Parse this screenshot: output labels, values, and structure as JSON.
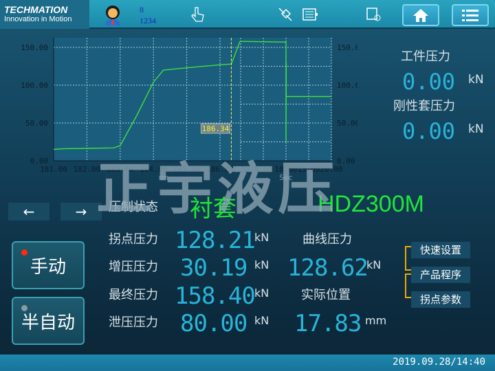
{
  "header": {
    "logo_brand": "TECHMATION",
    "logo_tagline": "Innovation in Motion",
    "user_level": "8",
    "user_id": "1234",
    "icons": [
      "user-avatar-icon",
      "touch-hand-icon",
      "disconnect-icon",
      "battery-icon",
      "print-icon",
      "home-icon",
      "menu-list-icon"
    ]
  },
  "chart_data": [
    {
      "type": "line",
      "xlabel": "mm",
      "ylabel": "",
      "xlim": [
        181,
        186.5
      ],
      "ylim": [
        0,
        150
      ],
      "x_ticks": [
        "181.00",
        "182.00",
        "183.00",
        "184.00",
        "185.00",
        "186.00"
      ],
      "y_ticks": [
        "0.00",
        "50.00",
        "100.00",
        "150.00"
      ],
      "grid": true,
      "cursor_value": "186.34",
      "line_color": "#3ee03e",
      "series": [
        {
          "x": [
            181.0,
            181.3,
            182.8,
            183.0,
            183.5,
            184.0,
            184.3,
            185.0,
            186.0,
            186.34,
            186.6
          ],
          "y": [
            15,
            16,
            17,
            20,
            60,
            104,
            120,
            123,
            127,
            128,
            158
          ]
        }
      ]
    },
    {
      "type": "line",
      "xlabel": "Sec",
      "ylabel": "",
      "xlim": [
        0,
        20
      ],
      "ylim": [
        0,
        150
      ],
      "x_ticks": [
        "0.00",
        "5.00",
        "10.00",
        "15.00",
        "20.00"
      ],
      "y_ticks": [
        "0.00",
        "50.00",
        "100.00",
        "150.00"
      ],
      "grid": true,
      "line_color": "#3ee03e",
      "series": [
        {
          "x": [
            0,
            10,
            10,
            10.05,
            10.05,
            20
          ],
          "y": [
            158,
            157,
            25,
            130,
            85,
            85
          ]
        }
      ]
    }
  ],
  "readouts": {
    "workpiece_label": "工件压力",
    "workpiece_value": "0.00",
    "workpiece_unit": "kN",
    "rigid_label": "刚性套压力",
    "rigid_value": "0.00",
    "rigid_unit": "kN"
  },
  "watermark": "正宇液压",
  "nav": {
    "prev": "←",
    "next": "→"
  },
  "status": {
    "label": "压制状态",
    "value": "衬套",
    "model": "HDZ300M"
  },
  "modes": [
    {
      "label": "手动",
      "led": "#ff2a10"
    },
    {
      "label": "半自动",
      "led": "#8a9aa0"
    }
  ],
  "params": [
    {
      "label": "拐点压力",
      "value": "128.21",
      "unit": "kN"
    },
    {
      "label": "增压压力",
      "value": "30.19",
      "unit": "kN"
    },
    {
      "label": "最终压力",
      "value": "158.40",
      "unit": "kN"
    },
    {
      "label": "泄压压力",
      "value": "80.00",
      "unit": "kN"
    }
  ],
  "curve": {
    "label": "曲线压力",
    "value": "128.62",
    "unit": "kN"
  },
  "position": {
    "label": "实际位置",
    "value": "17.83",
    "unit": "mm"
  },
  "side_buttons": [
    "快速设置",
    "产品程序",
    "拐点参数"
  ],
  "footer": {
    "datetime": "2019.09.28/14:40"
  }
}
